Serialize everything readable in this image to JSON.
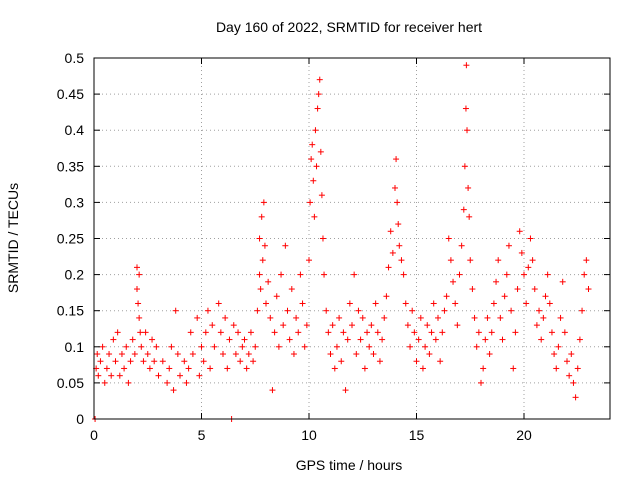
{
  "chart_data": {
    "type": "scatter",
    "title": "Day 160 of 2022, SRMTID for receiver hert",
    "xlabel": "GPS time / hours",
    "ylabel": "SRMTID / TECUs",
    "xlim": [
      0,
      24
    ],
    "ylim": [
      0,
      0.5
    ],
    "xticks": [
      0,
      5,
      10,
      15,
      20
    ],
    "xtick_labels": [
      "0",
      "5",
      "10",
      "15",
      "20"
    ],
    "yticks": [
      0,
      0.05,
      0.1,
      0.15,
      0.2,
      0.25,
      0.3,
      0.35,
      0.4,
      0.45,
      0.5
    ],
    "ytick_labels": [
      "0",
      "0.05",
      "0.1",
      "0.15",
      "0.2",
      "0.25",
      "0.3",
      "0.35",
      "0.4",
      "0.45",
      "0.5"
    ],
    "grid": true,
    "marker": "+",
    "color": "#ff0000",
    "series": [
      {
        "name": "SRMTID",
        "points": [
          [
            0.05,
            0.0
          ],
          [
            0.1,
            0.07
          ],
          [
            0.15,
            0.09
          ],
          [
            0.2,
            0.06
          ],
          [
            0.3,
            0.08
          ],
          [
            0.4,
            0.1
          ],
          [
            0.5,
            0.05
          ],
          [
            0.6,
            0.07
          ],
          [
            0.7,
            0.09
          ],
          [
            0.8,
            0.06
          ],
          [
            0.9,
            0.11
          ],
          [
            1.0,
            0.08
          ],
          [
            1.1,
            0.12
          ],
          [
            1.2,
            0.06
          ],
          [
            1.3,
            0.09
          ],
          [
            1.4,
            0.07
          ],
          [
            1.5,
            0.1
          ],
          [
            1.6,
            0.05
          ],
          [
            1.7,
            0.08
          ],
          [
            1.8,
            0.11
          ],
          [
            1.9,
            0.09
          ],
          [
            2.0,
            0.21
          ],
          [
            2.0,
            0.18
          ],
          [
            2.05,
            0.16
          ],
          [
            2.1,
            0.2
          ],
          [
            2.1,
            0.14
          ],
          [
            2.15,
            0.12
          ],
          [
            2.2,
            0.1
          ],
          [
            2.3,
            0.08
          ],
          [
            2.4,
            0.12
          ],
          [
            2.5,
            0.09
          ],
          [
            2.6,
            0.07
          ],
          [
            2.7,
            0.11
          ],
          [
            2.8,
            0.08
          ],
          [
            2.9,
            0.1
          ],
          [
            3.0,
            0.06
          ],
          [
            3.2,
            0.08
          ],
          [
            3.4,
            0.05
          ],
          [
            3.5,
            0.07
          ],
          [
            3.6,
            0.1
          ],
          [
            3.7,
            0.04
          ],
          [
            3.8,
            0.15
          ],
          [
            3.9,
            0.09
          ],
          [
            4.0,
            0.06
          ],
          [
            4.2,
            0.08
          ],
          [
            4.3,
            0.05
          ],
          [
            4.4,
            0.07
          ],
          [
            4.5,
            0.12
          ],
          [
            4.6,
            0.09
          ],
          [
            4.8,
            0.14
          ],
          [
            4.9,
            0.06
          ],
          [
            5.0,
            0.1
          ],
          [
            5.1,
            0.08
          ],
          [
            5.2,
            0.12
          ],
          [
            5.3,
            0.15
          ],
          [
            5.4,
            0.07
          ],
          [
            5.5,
            0.13
          ],
          [
            5.6,
            0.1
          ],
          [
            5.8,
            0.16
          ],
          [
            5.9,
            0.12
          ],
          [
            6.0,
            0.09
          ],
          [
            6.1,
            0.14
          ],
          [
            6.2,
            0.07
          ],
          [
            6.3,
            0.11
          ],
          [
            6.4,
            0.0
          ],
          [
            6.5,
            0.13
          ],
          [
            6.6,
            0.09
          ],
          [
            6.7,
            0.12
          ],
          [
            6.8,
            0.08
          ],
          [
            6.9,
            0.1
          ],
          [
            7.0,
            0.11
          ],
          [
            7.1,
            0.07
          ],
          [
            7.2,
            0.09
          ],
          [
            7.3,
            0.12
          ],
          [
            7.4,
            0.08
          ],
          [
            7.5,
            0.1
          ],
          [
            7.6,
            0.15
          ],
          [
            7.7,
            0.25
          ],
          [
            7.7,
            0.2
          ],
          [
            7.75,
            0.18
          ],
          [
            7.8,
            0.28
          ],
          [
            7.85,
            0.22
          ],
          [
            7.9,
            0.3
          ],
          [
            7.95,
            0.24
          ],
          [
            8.0,
            0.16
          ],
          [
            8.1,
            0.19
          ],
          [
            8.2,
            0.14
          ],
          [
            8.3,
            0.04
          ],
          [
            8.4,
            0.12
          ],
          [
            8.5,
            0.17
          ],
          [
            8.6,
            0.1
          ],
          [
            8.7,
            0.2
          ],
          [
            8.8,
            0.13
          ],
          [
            8.9,
            0.24
          ],
          [
            9.0,
            0.15
          ],
          [
            9.1,
            0.11
          ],
          [
            9.2,
            0.18
          ],
          [
            9.3,
            0.09
          ],
          [
            9.4,
            0.14
          ],
          [
            9.5,
            0.12
          ],
          [
            9.6,
            0.2
          ],
          [
            9.7,
            0.16
          ],
          [
            9.8,
            0.1
          ],
          [
            9.9,
            0.13
          ],
          [
            10.0,
            0.22
          ],
          [
            10.05,
            0.3
          ],
          [
            10.1,
            0.36
          ],
          [
            10.15,
            0.38
          ],
          [
            10.2,
            0.33
          ],
          [
            10.25,
            0.28
          ],
          [
            10.3,
            0.4
          ],
          [
            10.35,
            0.35
          ],
          [
            10.4,
            0.43
          ],
          [
            10.45,
            0.45
          ],
          [
            10.5,
            0.47
          ],
          [
            10.55,
            0.37
          ],
          [
            10.6,
            0.31
          ],
          [
            10.65,
            0.25
          ],
          [
            10.7,
            0.2
          ],
          [
            10.8,
            0.15
          ],
          [
            10.9,
            0.12
          ],
          [
            11.0,
            0.09
          ],
          [
            11.1,
            0.13
          ],
          [
            11.2,
            0.07
          ],
          [
            11.3,
            0.1
          ],
          [
            11.4,
            0.14
          ],
          [
            11.5,
            0.08
          ],
          [
            11.6,
            0.12
          ],
          [
            11.7,
            0.04
          ],
          [
            11.8,
            0.11
          ],
          [
            11.9,
            0.16
          ],
          [
            12.0,
            0.13
          ],
          [
            12.1,
            0.2
          ],
          [
            12.2,
            0.09
          ],
          [
            12.3,
            0.15
          ],
          [
            12.4,
            0.11
          ],
          [
            12.5,
            0.14
          ],
          [
            12.6,
            0.07
          ],
          [
            12.7,
            0.12
          ],
          [
            12.8,
            0.1
          ],
          [
            12.9,
            0.13
          ],
          [
            13.0,
            0.09
          ],
          [
            13.1,
            0.16
          ],
          [
            13.2,
            0.12
          ],
          [
            13.3,
            0.08
          ],
          [
            13.4,
            0.11
          ],
          [
            13.5,
            0.14
          ],
          [
            13.6,
            0.17
          ],
          [
            13.7,
            0.21
          ],
          [
            13.8,
            0.26
          ],
          [
            13.9,
            0.23
          ],
          [
            14.0,
            0.32
          ],
          [
            14.05,
            0.36
          ],
          [
            14.1,
            0.3
          ],
          [
            14.15,
            0.27
          ],
          [
            14.2,
            0.24
          ],
          [
            14.3,
            0.22
          ],
          [
            14.4,
            0.2
          ],
          [
            14.5,
            0.16
          ],
          [
            14.6,
            0.13
          ],
          [
            14.7,
            0.1
          ],
          [
            14.8,
            0.15
          ],
          [
            14.9,
            0.12
          ],
          [
            15.0,
            0.08
          ],
          [
            15.1,
            0.11
          ],
          [
            15.2,
            0.14
          ],
          [
            15.3,
            0.07
          ],
          [
            15.4,
            0.1
          ],
          [
            15.5,
            0.13
          ],
          [
            15.6,
            0.09
          ],
          [
            15.7,
            0.12
          ],
          [
            15.8,
            0.16
          ],
          [
            15.9,
            0.11
          ],
          [
            16.0,
            0.14
          ],
          [
            16.1,
            0.08
          ],
          [
            16.2,
            0.12
          ],
          [
            16.3,
            0.15
          ],
          [
            16.4,
            0.17
          ],
          [
            16.5,
            0.25
          ],
          [
            16.6,
            0.22
          ],
          [
            16.7,
            0.19
          ],
          [
            16.8,
            0.16
          ],
          [
            16.9,
            0.13
          ],
          [
            17.0,
            0.2
          ],
          [
            17.1,
            0.24
          ],
          [
            17.2,
            0.29
          ],
          [
            17.25,
            0.35
          ],
          [
            17.3,
            0.43
          ],
          [
            17.32,
            0.49
          ],
          [
            17.35,
            0.4
          ],
          [
            17.4,
            0.32
          ],
          [
            17.45,
            0.28
          ],
          [
            17.5,
            0.22
          ],
          [
            17.6,
            0.18
          ],
          [
            17.7,
            0.14
          ],
          [
            17.8,
            0.1
          ],
          [
            17.9,
            0.12
          ],
          [
            18.0,
            0.05
          ],
          [
            18.1,
            0.07
          ],
          [
            18.2,
            0.11
          ],
          [
            18.3,
            0.14
          ],
          [
            18.4,
            0.09
          ],
          [
            18.5,
            0.12
          ],
          [
            18.6,
            0.16
          ],
          [
            18.7,
            0.19
          ],
          [
            18.8,
            0.22
          ],
          [
            18.9,
            0.14
          ],
          [
            19.0,
            0.11
          ],
          [
            19.1,
            0.17
          ],
          [
            19.2,
            0.2
          ],
          [
            19.3,
            0.24
          ],
          [
            19.4,
            0.15
          ],
          [
            19.5,
            0.07
          ],
          [
            19.6,
            0.12
          ],
          [
            19.7,
            0.18
          ],
          [
            19.8,
            0.26
          ],
          [
            19.9,
            0.23
          ],
          [
            20.0,
            0.2
          ],
          [
            20.1,
            0.16
          ],
          [
            20.2,
            0.21
          ],
          [
            20.3,
            0.25
          ],
          [
            20.4,
            0.22
          ],
          [
            20.5,
            0.18
          ],
          [
            20.6,
            0.13
          ],
          [
            20.7,
            0.15
          ],
          [
            20.8,
            0.11
          ],
          [
            20.9,
            0.14
          ],
          [
            21.0,
            0.17
          ],
          [
            21.1,
            0.2
          ],
          [
            21.2,
            0.16
          ],
          [
            21.3,
            0.12
          ],
          [
            21.4,
            0.09
          ],
          [
            21.5,
            0.07
          ],
          [
            21.6,
            0.1
          ],
          [
            21.7,
            0.14
          ],
          [
            21.8,
            0.19
          ],
          [
            21.9,
            0.12
          ],
          [
            22.0,
            0.08
          ],
          [
            22.1,
            0.06
          ],
          [
            22.2,
            0.09
          ],
          [
            22.3,
            0.05
          ],
          [
            22.4,
            0.03
          ],
          [
            22.5,
            0.07
          ],
          [
            22.6,
            0.11
          ],
          [
            22.7,
            0.15
          ],
          [
            22.8,
            0.2
          ],
          [
            22.9,
            0.22
          ],
          [
            23.0,
            0.18
          ]
        ]
      }
    ]
  }
}
